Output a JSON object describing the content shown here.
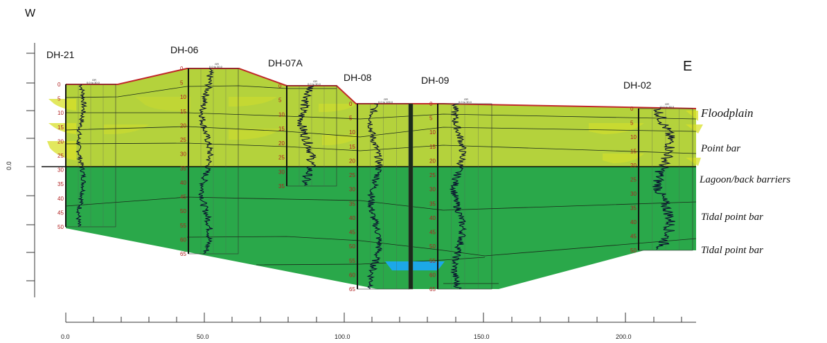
{
  "directions": {
    "west": "W",
    "east": "E"
  },
  "y_axis": {
    "label": "0.0"
  },
  "x_axis": {
    "ticks": [
      "0.0",
      "50.0",
      "100.0",
      "150.0",
      "200.0"
    ]
  },
  "wells": [
    {
      "name": "DH-21",
      "gr": "GR",
      "gr_range": "0.0 to 30.0",
      "depths": [
        "0",
        "5",
        "10",
        "15",
        "20",
        "25",
        "30",
        "35",
        "40",
        "45",
        "50"
      ]
    },
    {
      "name": "DH-06",
      "gr": "GR",
      "gr_range": "0.0 to 30.0",
      "depths": [
        "0",
        "5",
        "10",
        "15",
        "20",
        "25",
        "30",
        "35",
        "40",
        "45",
        "50",
        "55",
        "60",
        "65"
      ]
    },
    {
      "name": "DH-07A",
      "gr": "GR",
      "gr_range": "0.0 to 30.0",
      "depths": [
        "0",
        "5",
        "10",
        "15",
        "20",
        "25",
        "30",
        "35"
      ]
    },
    {
      "name": "DH-08",
      "gr": "GR",
      "gr_range": "0.0 to 100.0",
      "depths": [
        "0",
        "5",
        "10",
        "15",
        "20",
        "25",
        "30",
        "35",
        "40",
        "45",
        "50",
        "55",
        "60",
        "65"
      ]
    },
    {
      "name": "DH-09",
      "gr": "GR",
      "gr_range": "0.0 to 30.0",
      "depths": [
        "0",
        "5",
        "10",
        "15",
        "20",
        "25",
        "30",
        "35",
        "40",
        "45",
        "50",
        "55",
        "60",
        "65"
      ]
    },
    {
      "name": "DH-02",
      "gr": "GR",
      "gr_range": "10.0 to 80.0",
      "depths": [
        "0",
        "5",
        "10",
        "15",
        "20",
        "25",
        "30",
        "35",
        "40",
        "45",
        "50"
      ]
    }
  ],
  "facies": [
    "Floodplain",
    "Point bar",
    "Lagoon/back barriers",
    "Tidal point bar",
    "Tidal point bar"
  ],
  "colors": {
    "upper_unit": "#b4d23c",
    "lower_unit": "#2aa84a",
    "lens": "#d8e028",
    "top_surface": "#c0282a",
    "gr_log": "#0a1030",
    "water_lens": "#1ca8e8"
  }
}
